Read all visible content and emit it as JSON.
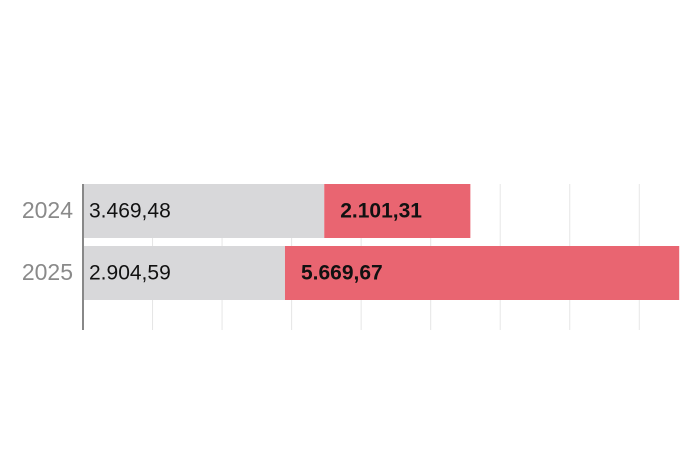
{
  "chart_data": {
    "type": "stacked-barh",
    "categories": [
      "2024",
      "2025"
    ],
    "series": [
      {
        "color": "#d8d8da",
        "values": [
          3469.48,
          2904.59
        ],
        "value_labels": [
          "3.469,48",
          "2.904,59"
        ]
      },
      {
        "color": "#e96571",
        "values": [
          2101.31,
          5669.67
        ],
        "value_labels": [
          "2.101,31",
          "5.669,67"
        ]
      }
    ],
    "xlim": [
      0,
      8600
    ],
    "xticks": [
      0,
      1000,
      2000,
      3000,
      4000,
      5000,
      6000,
      7000,
      8000
    ],
    "xtick_labels": false,
    "grid": true
  }
}
